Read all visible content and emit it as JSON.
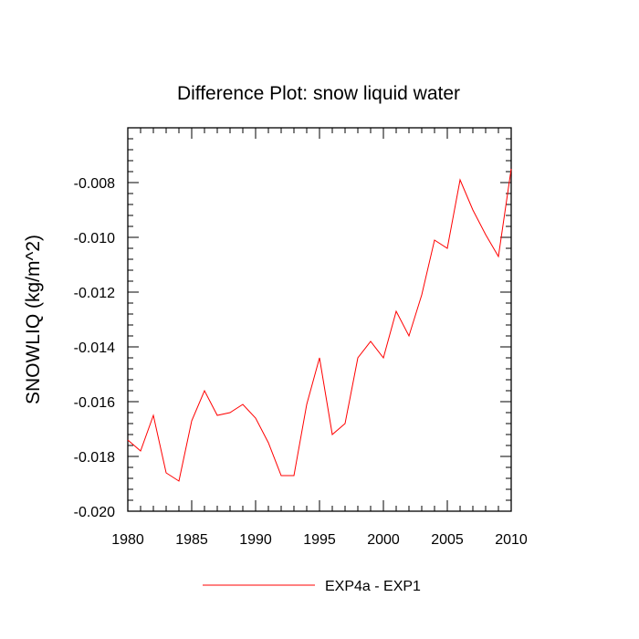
{
  "chart_data": {
    "type": "line",
    "title": "Difference Plot: snow liquid water",
    "xlabel": "",
    "ylabel": "SNOWLIQ  (kg/m^2)",
    "xlim": [
      1980,
      2010
    ],
    "ylim": [
      -0.02,
      -0.006
    ],
    "xticks": [
      1980,
      1985,
      1990,
      1995,
      2000,
      2005,
      2010
    ],
    "xtick_labels": [
      "1980",
      "1985",
      "1990",
      "1995",
      "2000",
      "2005",
      "2010"
    ],
    "yticks": [
      -0.02,
      -0.018,
      -0.016,
      -0.014,
      -0.012,
      -0.01,
      -0.008
    ],
    "ytick_labels": [
      "-0.020",
      "-0.018",
      "-0.016",
      "-0.014",
      "-0.012",
      "-0.010",
      "-0.008"
    ],
    "grid": false,
    "legend_position": "bottom-center",
    "series": [
      {
        "name": "EXP4a - EXP1",
        "color": "#ff0000",
        "x": [
          1980,
          1981,
          1982,
          1983,
          1984,
          1985,
          1986,
          1987,
          1988,
          1989,
          1990,
          1991,
          1992,
          1993,
          1994,
          1995,
          1996,
          1997,
          1998,
          1999,
          2000,
          2001,
          2002,
          2003,
          2004,
          2005,
          2006,
          2007,
          2008,
          2009,
          2010
        ],
        "values": [
          -0.0174,
          -0.0178,
          -0.0165,
          -0.0186,
          -0.0189,
          -0.0167,
          -0.0156,
          -0.0165,
          -0.0164,
          -0.0161,
          -0.0166,
          -0.0175,
          -0.0187,
          -0.0187,
          -0.0161,
          -0.0144,
          -0.0172,
          -0.0168,
          -0.0144,
          -0.0138,
          -0.0144,
          -0.0127,
          -0.0136,
          -0.0121,
          -0.0101,
          -0.0104,
          -0.0079,
          -0.009,
          -0.0099,
          -0.0107,
          -0.0075
        ]
      }
    ]
  }
}
